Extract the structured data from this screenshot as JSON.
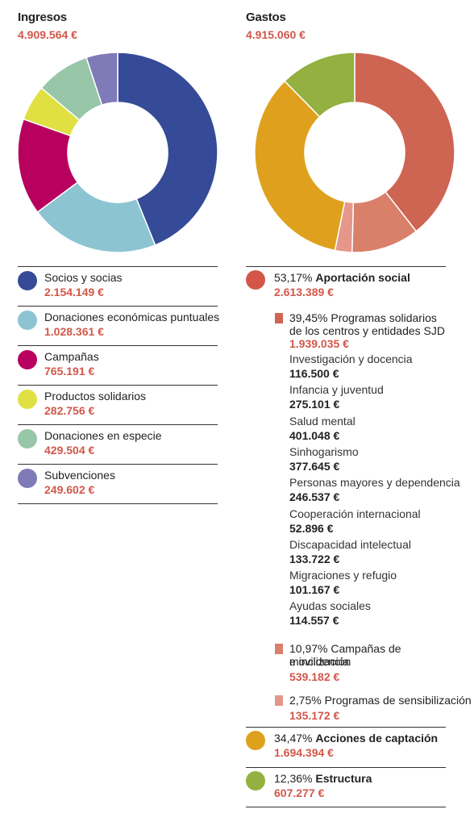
{
  "chart_data": [
    {
      "type": "pie",
      "title": "Ingresos",
      "subtitle": "4.909.564 €",
      "slices": [
        {
          "label": "Socios y socias",
          "value": 2154149,
          "amount": "2.154.149 €",
          "color": "#354b97"
        },
        {
          "label": "Donaciones económicas puntuales",
          "value": 1028361,
          "amount": "1.028.361 €",
          "color": "#8cc4d2"
        },
        {
          "label": "Campañas",
          "value": 765191,
          "amount": "765.191 €",
          "color": "#b8005e"
        },
        {
          "label": "Productos solidarios",
          "value": 282756,
          "amount": "282.756 €",
          "color": "#e0e043"
        },
        {
          "label": "Donaciones en especie",
          "value": 429504,
          "amount": "429.504 €",
          "color": "#98c6a8"
        },
        {
          "label": "Subvenciones",
          "value": 249602,
          "amount": "249.602 €",
          "color": "#7f7ab8"
        }
      ]
    },
    {
      "type": "pie",
      "title": "Gastos",
      "subtitle": "4.915.060 €",
      "slices": [
        {
          "label": "Programas solidarios de los centros y entidades SJD",
          "value": 1939035,
          "color": "#ce6452"
        },
        {
          "label": "Campañas de movilización e incidencia",
          "value": 539182,
          "color": "#d9806a"
        },
        {
          "label": "Programas de sensibilización",
          "value": 135172,
          "color": "#e4978a"
        },
        {
          "label": "Acciones de captación",
          "value": 1694394,
          "color": "#dfa11d"
        },
        {
          "label": "Estructura",
          "value": 607277,
          "color": "#93b040"
        }
      ]
    }
  ],
  "expenses": {
    "aportacion": {
      "pct": "53,17%",
      "name": "Aportación social",
      "amount": "2.613.389 €",
      "color": "#d2574a"
    },
    "programas": {
      "line1": "39,45% Programas solidarios",
      "line2": "de los centros y entidades SJD",
      "amount": "1.939.035 €",
      "color": "#ce6452"
    },
    "items": [
      {
        "label": "Investigación y docencia",
        "amount": "116.500 €"
      },
      {
        "label": "Infancia y juventud",
        "amount": "275.101 €"
      },
      {
        "label": "Salud mental",
        "amount": "401.048 €"
      },
      {
        "label": "Sinhogarismo",
        "amount": "377.645 €"
      },
      {
        "label": "Personas mayores y dependencia",
        "amount": "246.537 €"
      },
      {
        "label": "Cooperación internacional",
        "amount": "52.896 €"
      },
      {
        "label": "Discapacidad intelectual",
        "amount": "133.722 €"
      },
      {
        "label": "Migraciones y refugio",
        "amount": "101.167 €"
      },
      {
        "label": "Ayudas sociales",
        "amount": "114.557 €"
      }
    ],
    "campanas": {
      "line1": "10,97% Campañas de movilización",
      "line2": "e incidencia",
      "amount": "539.182 €",
      "color": "#d9806a"
    },
    "sensibilizacion": {
      "line1": "2,75% Programas de sensibilización",
      "amount": "135.172 €",
      "color": "#e4978a"
    },
    "captacion": {
      "pct": "34,47%",
      "name": "Acciones de captación",
      "amount": "1.694.394 €",
      "color": "#dfa11d"
    },
    "estructura": {
      "pct": "12,36%",
      "name": "Estructura",
      "amount": "607.277 €",
      "color": "#93b040"
    }
  }
}
